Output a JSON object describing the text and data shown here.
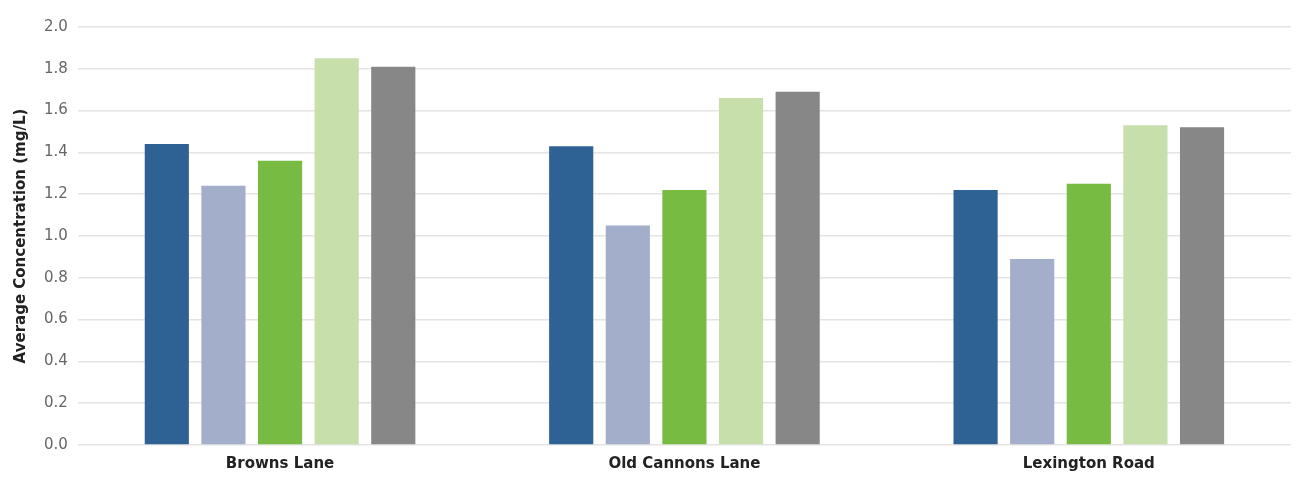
{
  "chart_data": {
    "type": "bar",
    "ylabel": "Average Concentration (mg/L)",
    "categories": [
      "Browns Lane",
      "Old Cannons Lane",
      "Lexington Road"
    ],
    "series": [
      {
        "color": "#2e6194",
        "values": [
          1.44,
          1.43,
          1.22
        ]
      },
      {
        "color": "#a3aeca",
        "values": [
          1.24,
          1.05,
          0.89
        ]
      },
      {
        "color": "#78bb43",
        "values": [
          1.36,
          1.22,
          1.25
        ]
      },
      {
        "color": "#c6dfab",
        "values": [
          1.85,
          1.66,
          1.53
        ]
      },
      {
        "color": "#878787",
        "values": [
          1.81,
          1.69,
          1.52
        ]
      }
    ],
    "ylim": [
      0,
      2
    ],
    "yticks": [
      {
        "value": 0,
        "label": "0.0"
      },
      {
        "value": 0.2,
        "label": "0.2"
      },
      {
        "value": 0.4,
        "label": "0.4"
      },
      {
        "value": 0.6,
        "label": "0.6"
      },
      {
        "value": 0.8,
        "label": "0.8"
      },
      {
        "value": 1,
        "label": "1.0"
      },
      {
        "value": 1.2,
        "label": "1.2"
      },
      {
        "value": 1.4,
        "label": "1.4"
      },
      {
        "value": 1.6,
        "label": "1.6"
      },
      {
        "value": 1.8,
        "label": "1.8"
      },
      {
        "value": 2,
        "label": "2.0"
      }
    ],
    "grid": "y",
    "legend": false
  }
}
